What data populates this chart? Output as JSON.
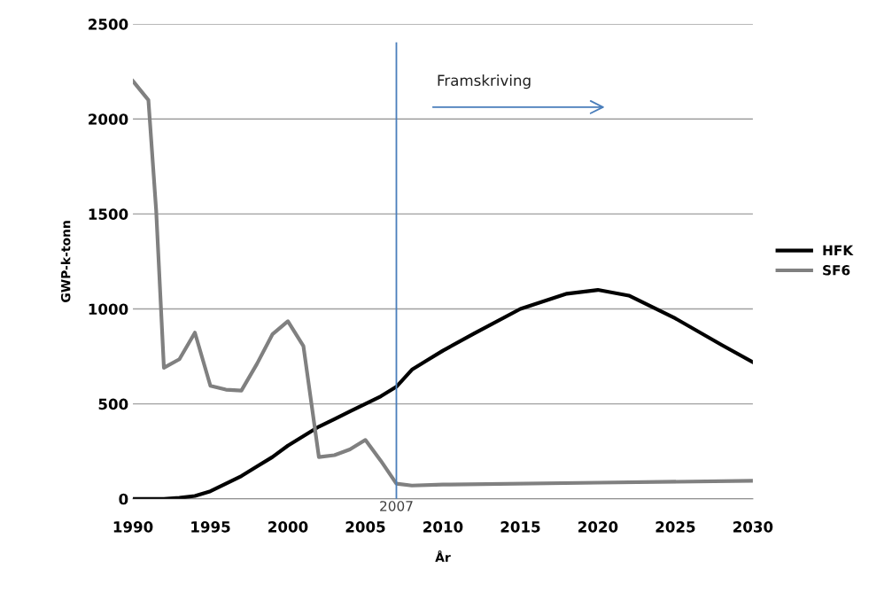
{
  "chart_data": {
    "type": "line",
    "xlabel": "År",
    "ylabel": "GWP-k-tonn",
    "xlim": [
      1990,
      2030
    ],
    "xticks": [
      1990,
      1995,
      2000,
      2005,
      2010,
      2015,
      2020,
      2025,
      2030
    ],
    "ylim": [
      0,
      2500
    ],
    "yticks": [
      0,
      500,
      1000,
      1500,
      2000,
      2500
    ],
    "grid": "y",
    "legend": "right",
    "marker": "none",
    "line_style": "solid",
    "series": [
      {
        "name": "HFK",
        "color": "#000000",
        "x": [
          1990,
          1991,
          1992,
          1993,
          1994,
          1995,
          1996,
          1997,
          1998,
          1999,
          2000,
          2001,
          2002,
          2003,
          2004,
          2005,
          2006,
          2007,
          2008,
          2009,
          2010,
          2012,
          2015,
          2018,
          2020,
          2022,
          2025,
          2028,
          2030
        ],
        "values": [
          0,
          0,
          0,
          5,
          15,
          40,
          80,
          120,
          170,
          220,
          280,
          330,
          380,
          420,
          460,
          500,
          540,
          590,
          680,
          730,
          780,
          870,
          1000,
          1080,
          1100,
          1070,
          950,
          810,
          720
        ]
      },
      {
        "name": "SF6",
        "color": "#808080",
        "x": [
          1990,
          1991,
          1991.5,
          1992,
          1993,
          1994,
          1995,
          1996,
          1997,
          1998,
          1999,
          2000,
          2001,
          2002,
          2003,
          2004,
          2005,
          2006,
          2007,
          2008,
          2010,
          2020,
          2030
        ],
        "values": [
          2200,
          2100,
          1520,
          690,
          735,
          875,
          595,
          575,
          570,
          710,
          866,
          935,
          805,
          220,
          230,
          260,
          310,
          200,
          80,
          70,
          75,
          85,
          95
        ]
      }
    ],
    "ref_lines": [
      {
        "axis": "x",
        "value": 2007,
        "label": "2007",
        "color": "#4a7ebb"
      }
    ],
    "annotations": [
      "Framskriving"
    ]
  }
}
